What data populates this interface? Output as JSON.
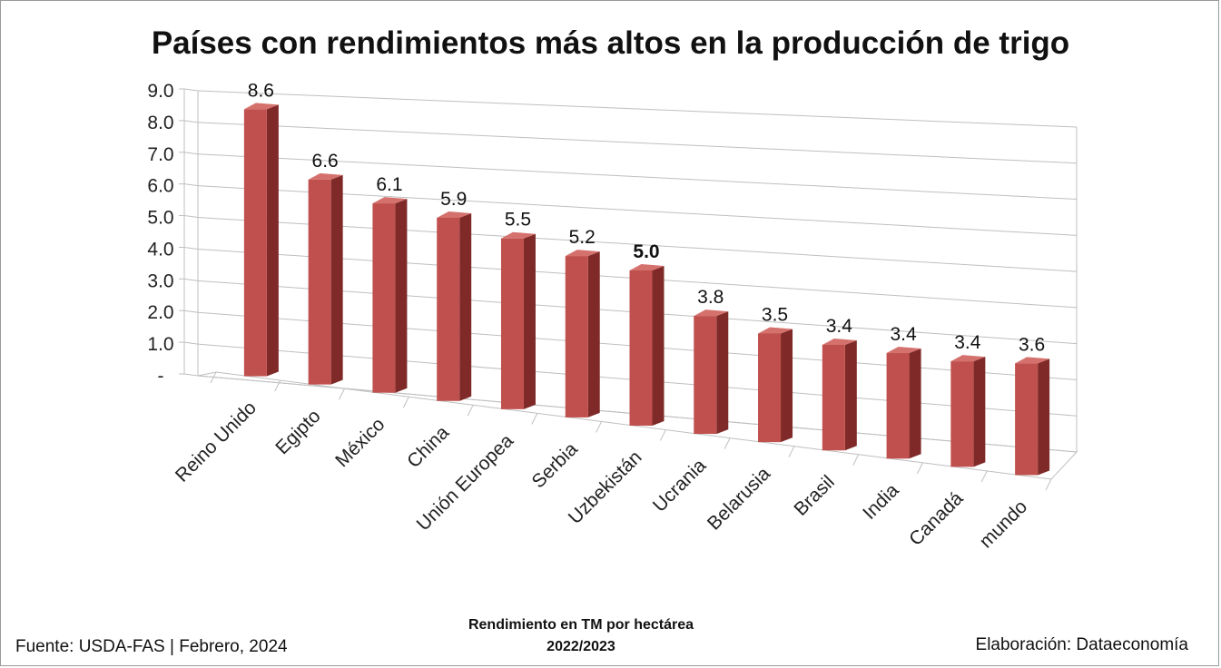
{
  "title": "Países con rendimientos más altos en la producción de trigo",
  "footer": {
    "source": "Fuente:  USDA-FAS | Febrero, 2024",
    "xlabel_line1": "Rendimiento en TM por hectárea",
    "xlabel_line2": "2022/2023",
    "credit": "Elaboración: Dataeconomía"
  },
  "colors": {
    "bar_front": "#c0504d",
    "bar_side": "#7f2a28",
    "bar_top": "#d4716d",
    "grid": "#bfbfbf"
  },
  "chart_data": {
    "type": "bar",
    "title": "Países con rendimientos más altos en la producción de trigo",
    "xlabel": "Rendimiento en TM por hectárea 2022/2023",
    "ylabel": "",
    "ylim": [
      0,
      9
    ],
    "yticks": [
      "-",
      "1.0",
      "2.0",
      "3.0",
      "4.0",
      "5.0",
      "6.0",
      "7.0",
      "8.0",
      "9.0"
    ],
    "categories": [
      "Reino Unido",
      "Egipto",
      "México",
      "China",
      "Unión Europea",
      "Serbia",
      "Uzbekistán",
      "Ucrania",
      "Belarusia",
      "Brasil",
      "India",
      "Canadá",
      "mundo"
    ],
    "values": [
      8.6,
      6.6,
      6.1,
      5.9,
      5.5,
      5.2,
      5.0,
      3.8,
      3.5,
      3.4,
      3.4,
      3.4,
      3.6
    ],
    "data_labels": [
      "8.6",
      "6.6",
      "6.1",
      "5.9",
      "5.5",
      "5.2",
      "5.0",
      "3.8",
      "3.5",
      "3.4",
      "3.4",
      "3.4",
      "3.6"
    ],
    "highlight_index": 6,
    "grid": true,
    "legend": "none",
    "style": "3d-perspective"
  }
}
